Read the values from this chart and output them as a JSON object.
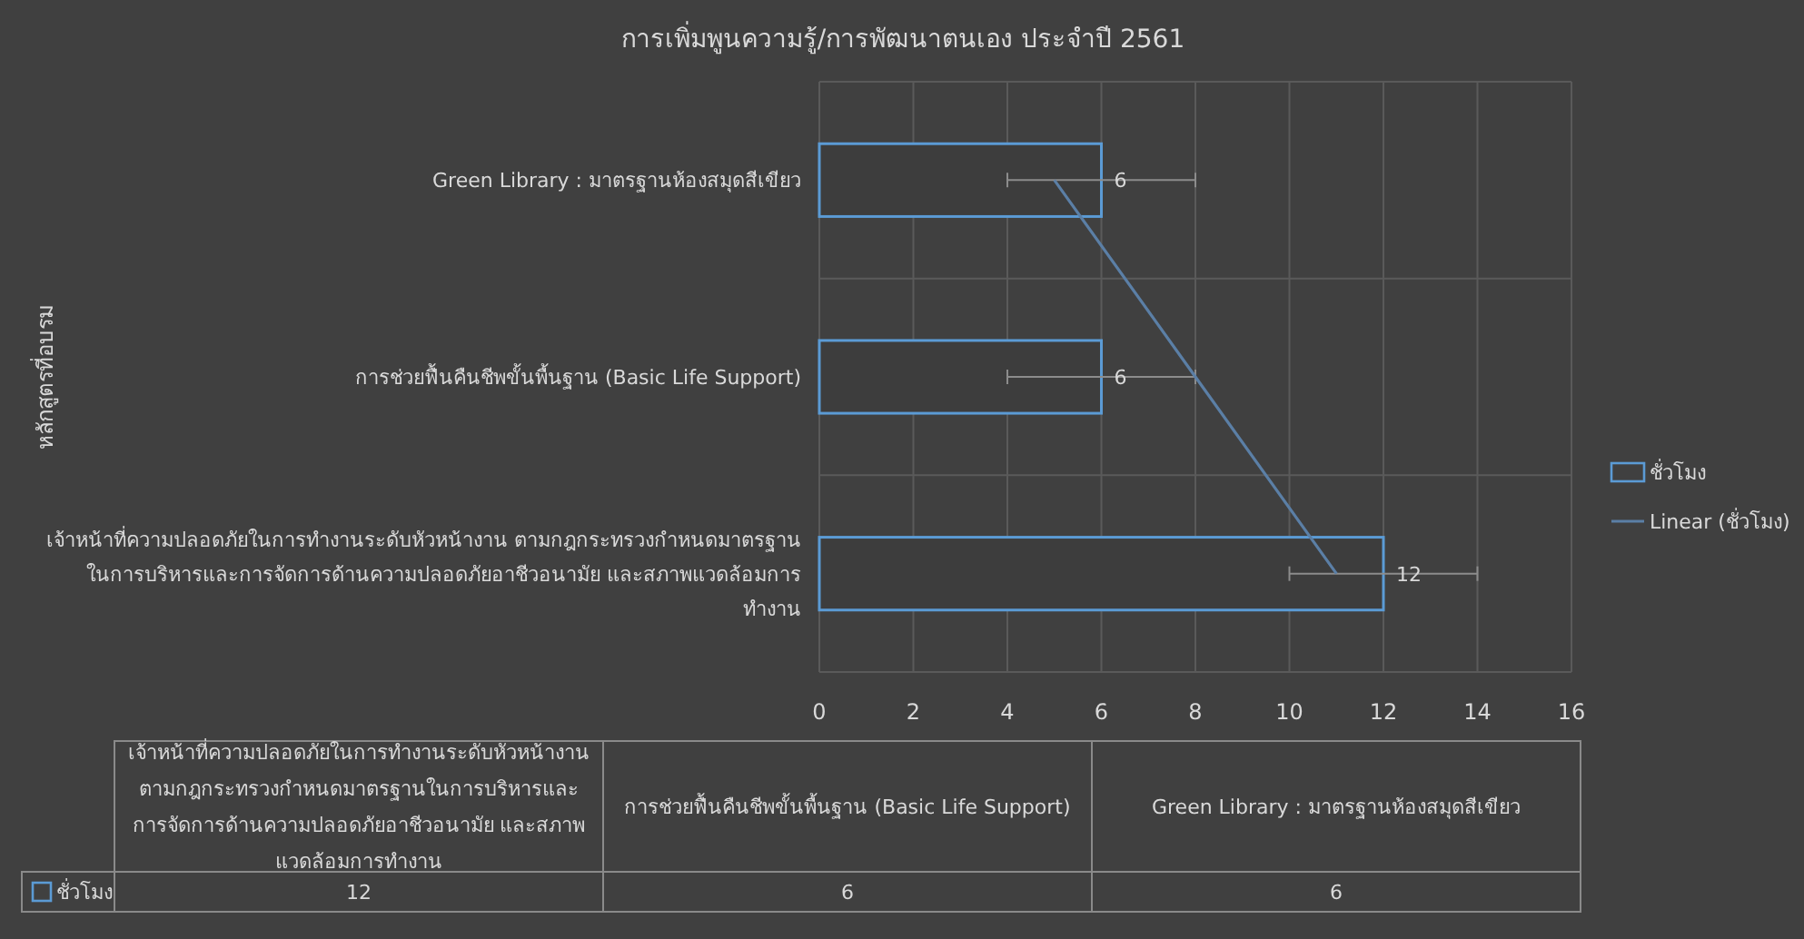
{
  "chart_data": {
    "type": "bar",
    "orientation": "horizontal",
    "title": "การเพิ่มพูนความรู้/การพัฒนาตนเอง  ประจำปี 2561",
    "ylabel": "หลักสูตรที่อบรม",
    "categories": [
      "Green Library : มาตรฐานห้องสมุดสีเขียว",
      "การช่วยฟื้นคืนชีพขั้นพื้นฐาน (Basic Life Support)",
      "เจ้าหน้าที่ความปลอดภัยในการทำงานระดับหัวหน้างาน ตามกฎกระทรวงกำหนดมาตรฐานในการบริหารและการจัดการด้านความปลอดภัยอาชีวอนามัย และสภาพแวดล้อมการทำงาน"
    ],
    "series": [
      {
        "name": "ชั่วโมง",
        "color": "#5b9bd5",
        "values": [
          6,
          6,
          12
        ],
        "errors": [
          2,
          2,
          2
        ],
        "value_labels": [
          "6",
          "6",
          "12"
        ]
      },
      {
        "name": "Linear (ชั่วโมง)",
        "type": "line",
        "color": "#5b7fa6",
        "values": [
          5,
          8,
          11
        ]
      }
    ],
    "xlim": [
      0,
      16
    ],
    "xticks": [
      0,
      2,
      4,
      6,
      8,
      10,
      12,
      14,
      16
    ],
    "grid": true,
    "legend": "right"
  }
}
